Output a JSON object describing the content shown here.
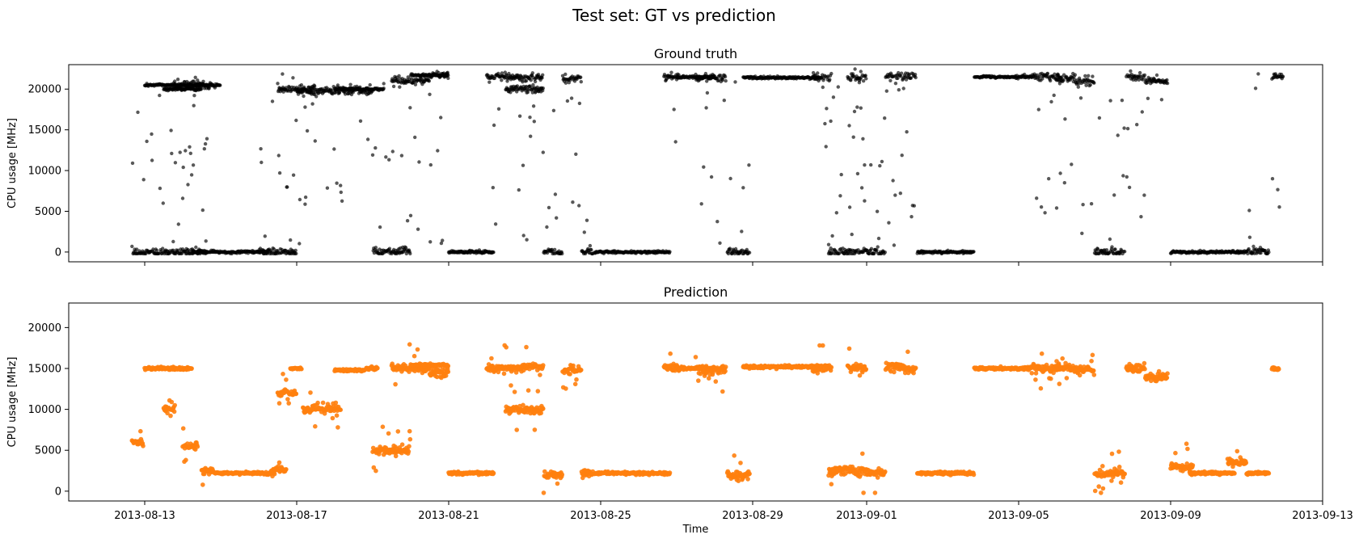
{
  "suptitle": "Test set: GT vs prediction",
  "chart_data": [
    {
      "type": "scatter",
      "title": "Ground truth",
      "xlabel": "",
      "ylabel": "CPU usage [MHz]",
      "xlim": [
        "2013-08-11T00:00",
        "2013-09-13T00:00"
      ],
      "ylim": [
        -1200,
        23000
      ],
      "yticks": [
        0,
        5000,
        10000,
        15000,
        20000
      ],
      "color": "#000000",
      "show_xticklabels": false,
      "grid": false,
      "segments": [
        [
          "2013-08-12T16:00",
          2,
          0,
          "d"
        ],
        [
          "2013-08-13T00:00",
          2,
          20500,
          "f"
        ],
        [
          "2013-08-13T12:00",
          1,
          20000,
          "f"
        ],
        [
          "2013-08-13T18:00",
          1,
          20500,
          "d"
        ],
        [
          "2013-08-14T06:00",
          2,
          0,
          "f"
        ],
        [
          "2013-08-16T00:00",
          1,
          0,
          "d"
        ],
        [
          "2013-08-16T12:00",
          1,
          20000,
          "d"
        ],
        [
          "2013-08-17T00:00",
          2,
          19800,
          "d"
        ],
        [
          "2013-08-18T00:00",
          1.3,
          20000,
          "f"
        ],
        [
          "2013-08-19T00:00",
          1,
          0,
          "d"
        ],
        [
          "2013-08-19T12:00",
          1,
          21000,
          "d"
        ],
        [
          "2013-08-20T00:00",
          1,
          21700,
          "f"
        ],
        [
          "2013-08-20T12:00",
          0.5,
          21700,
          "d"
        ],
        [
          "2013-08-21T00:00",
          1.2,
          0,
          "f"
        ],
        [
          "2013-08-22T00:00",
          1,
          21500,
          "d"
        ],
        [
          "2013-08-22T12:00",
          1,
          20000,
          "d"
        ],
        [
          "2013-08-23T00:00",
          0.5,
          21400,
          "d"
        ],
        [
          "2013-08-23T12:00",
          0.5,
          0,
          "d"
        ],
        [
          "2013-08-24T00:00",
          0.5,
          21300,
          "d"
        ],
        [
          "2013-08-24T12:00",
          0.3,
          0,
          "d"
        ],
        [
          "2013-08-24T20:00",
          2,
          0,
          "f"
        ],
        [
          "2013-08-26T16:00",
          0.4,
          21500,
          "d"
        ],
        [
          "2013-08-27T00:00",
          1,
          21500,
          "f"
        ],
        [
          "2013-08-27T12:00",
          0.8,
          21300,
          "d"
        ],
        [
          "2013-08-28T08:00",
          0.6,
          0,
          "d"
        ],
        [
          "2013-08-28T18:00",
          2,
          21400,
          "f"
        ],
        [
          "2013-08-30T14:00",
          0.5,
          21400,
          "d"
        ],
        [
          "2013-08-31T00:00",
          1,
          0,
          "d"
        ],
        [
          "2013-08-31T12:00",
          0.5,
          21500,
          "d"
        ],
        [
          "2013-09-01T00:00",
          0.5,
          0,
          "d"
        ],
        [
          "2013-09-01T12:00",
          0.5,
          21600,
          "d"
        ],
        [
          "2013-09-02T00:00",
          0.3,
          21600,
          "d"
        ],
        [
          "2013-09-02T08:00",
          1.5,
          0,
          "f"
        ],
        [
          "2013-09-03T20:00",
          1.5,
          21500,
          "f"
        ],
        [
          "2013-09-05T08:00",
          0.8,
          21500,
          "d"
        ],
        [
          "2013-09-06T00:00",
          0.5,
          21300,
          "d"
        ],
        [
          "2013-09-06T12:00",
          0.5,
          21000,
          "d"
        ],
        [
          "2013-09-07T00:00",
          0.8,
          0,
          "d"
        ],
        [
          "2013-09-07T20:00",
          0.5,
          21500,
          "d"
        ],
        [
          "2013-09-08T08:00",
          0.6,
          21000,
          "d"
        ],
        [
          "2013-09-09T00:00",
          1,
          0,
          "f"
        ],
        [
          "2013-09-10T00:00",
          1,
          0,
          "f"
        ],
        [
          "2013-09-11T00:00",
          0.6,
          0,
          "d"
        ],
        [
          "2013-09-11T16:00",
          0.3,
          21500,
          "d"
        ]
      ]
    },
    {
      "type": "scatter",
      "title": "Prediction",
      "xlabel": "Time",
      "ylabel": "CPU usage [MHz]",
      "xlim": [
        "2013-08-11T00:00",
        "2013-09-13T00:00"
      ],
      "ylim": [
        -1200,
        23000
      ],
      "yticks": [
        0,
        5000,
        10000,
        15000,
        20000
      ],
      "xticks": [
        "2013-08-13",
        "2013-08-17",
        "2013-08-21",
        "2013-08-25",
        "2013-08-29",
        "2013-09-01",
        "2013-09-05",
        "2013-09-09",
        "2013-09-13"
      ],
      "color": "#ff7f0e",
      "show_xticklabels": true,
      "grid": false,
      "segments": [
        [
          "2013-08-12T16:00",
          0.3,
          6000,
          "d"
        ],
        [
          "2013-08-13T00:00",
          0.8,
          15000,
          "f"
        ],
        [
          "2013-08-13T12:00",
          0.3,
          10000,
          "d"
        ],
        [
          "2013-08-13T18:00",
          0.5,
          15000,
          "f"
        ],
        [
          "2013-08-14T00:00",
          0.4,
          5500,
          "d"
        ],
        [
          "2013-08-14T12:00",
          0.3,
          2500,
          "d"
        ],
        [
          "2013-08-14T20:00",
          1.5,
          2200,
          "f"
        ],
        [
          "2013-08-16T08:00",
          0.4,
          2500,
          "d"
        ],
        [
          "2013-08-16T12:00",
          0.5,
          12000,
          "d"
        ],
        [
          "2013-08-16T20:00",
          0.3,
          15000,
          "f"
        ],
        [
          "2013-08-17T04:00",
          1,
          10000,
          "d"
        ],
        [
          "2013-08-18T00:00",
          0.8,
          14800,
          "f"
        ],
        [
          "2013-08-18T20:00",
          0.3,
          15000,
          "f"
        ],
        [
          "2013-08-19T00:00",
          1,
          5000,
          "d"
        ],
        [
          "2013-08-19T12:00",
          1,
          15000,
          "d"
        ],
        [
          "2013-08-20T00:00",
          1,
          15400,
          "f"
        ],
        [
          "2013-08-20T12:00",
          0.5,
          14500,
          "d"
        ],
        [
          "2013-08-21T00:00",
          1.2,
          2200,
          "f"
        ],
        [
          "2013-08-22T00:00",
          1,
          15000,
          "d"
        ],
        [
          "2013-08-22T12:00",
          1,
          10000,
          "d"
        ],
        [
          "2013-08-23T00:00",
          0.5,
          15200,
          "d"
        ],
        [
          "2013-08-23T12:00",
          0.5,
          2000,
          "d"
        ],
        [
          "2013-08-24T00:00",
          0.5,
          14800,
          "d"
        ],
        [
          "2013-08-24T12:00",
          0.3,
          2200,
          "d"
        ],
        [
          "2013-08-24T20:00",
          2,
          2200,
          "f"
        ],
        [
          "2013-08-26T16:00",
          0.4,
          15000,
          "d"
        ],
        [
          "2013-08-27T00:00",
          1,
          15000,
          "f"
        ],
        [
          "2013-08-27T12:00",
          0.8,
          14800,
          "d"
        ],
        [
          "2013-08-28T08:00",
          0.6,
          2000,
          "d"
        ],
        [
          "2013-08-28T18:00",
          2,
          15200,
          "f"
        ],
        [
          "2013-08-30T14:00",
          0.5,
          15000,
          "d"
        ],
        [
          "2013-08-31T00:00",
          1,
          2500,
          "d"
        ],
        [
          "2013-08-31T12:00",
          0.5,
          15000,
          "d"
        ],
        [
          "2013-09-01T00:00",
          0.5,
          2200,
          "d"
        ],
        [
          "2013-09-01T12:00",
          0.5,
          15200,
          "d"
        ],
        [
          "2013-09-02T00:00",
          0.3,
          15000,
          "d"
        ],
        [
          "2013-09-02T08:00",
          1.5,
          2200,
          "f"
        ],
        [
          "2013-09-03T20:00",
          1.5,
          15000,
          "f"
        ],
        [
          "2013-09-05T08:00",
          0.8,
          15000,
          "d"
        ],
        [
          "2013-09-06T00:00",
          0.5,
          15000,
          "d"
        ],
        [
          "2013-09-06T12:00",
          0.5,
          14800,
          "d"
        ],
        [
          "2013-09-07T00:00",
          0.8,
          2200,
          "d"
        ],
        [
          "2013-09-07T20:00",
          0.5,
          15000,
          "d"
        ],
        [
          "2013-09-08T08:00",
          0.6,
          14000,
          "d"
        ],
        [
          "2013-09-09T00:00",
          0.6,
          3000,
          "d"
        ],
        [
          "2013-09-09T12:00",
          1.2,
          2200,
          "f"
        ],
        [
          "2013-09-10T12:00",
          0.5,
          3500,
          "d"
        ],
        [
          "2013-09-11T00:00",
          0.6,
          2200,
          "f"
        ],
        [
          "2013-09-11T16:00",
          0.2,
          15000,
          "f"
        ]
      ]
    }
  ]
}
